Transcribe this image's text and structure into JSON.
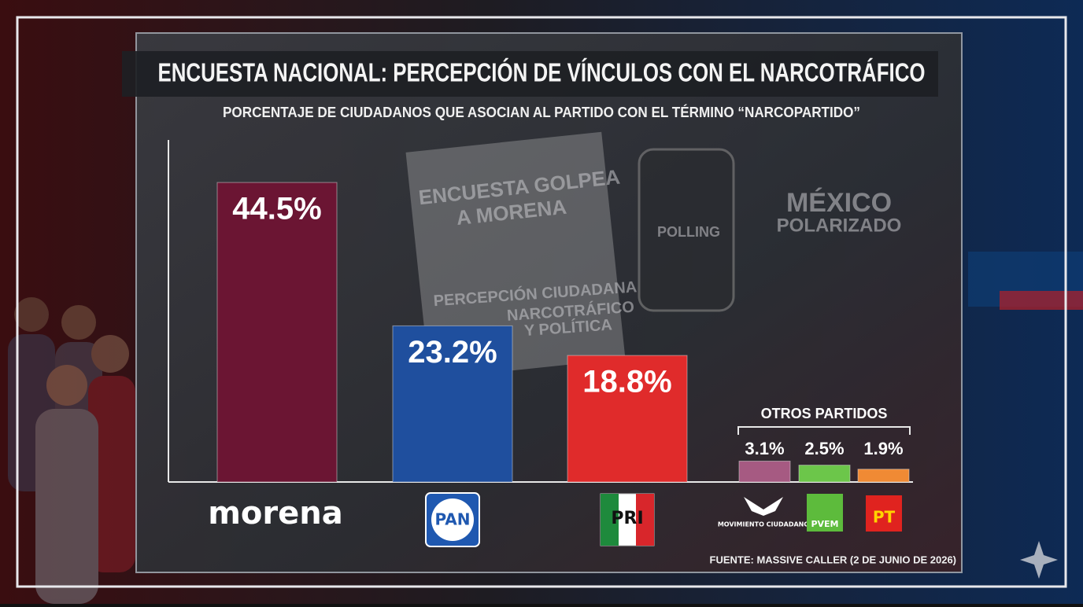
{
  "chart_data": {
    "type": "bar",
    "title": "ENCUESTA NACIONAL: PERCEPCIÓN DE VÍNCULOS CON EL NARCOTRÁFICO",
    "subtitle": "PORCENTAJE DE CIUDADANOS QUE ASOCIAN AL PARTIDO CON EL TÉRMINO “NARCOPARTIDO”",
    "categories": [
      "morena",
      "PAN",
      "PRI",
      "MOVIMIENTO CIUDADANO",
      "PVEM",
      "PT"
    ],
    "values": [
      44.5,
      23.2,
      18.8,
      3.1,
      2.5,
      1.9
    ],
    "value_labels": [
      "44.5%",
      "23.2%",
      "18.8%",
      "3.1%",
      "2.5%",
      "1.9%"
    ],
    "colors": [
      "#6b1533",
      "#1f4f9e",
      "#e02b2b",
      "#a65a82",
      "#6cc64a",
      "#f08a34"
    ],
    "others_label": "OTROS PARTIDOS",
    "ylim": [
      0,
      50
    ],
    "source": "FUENTE: MASSIVE CALLER (2 DE JUNIO DE 2026)",
    "annotations": [
      "ENCUESTA GOLPEA",
      "A MORENA",
      "PERCEPCIÓN CIUDADANA",
      "NARCOTRÁFICO",
      "Y POLÍTICA",
      "POLLING",
      "MÉXICO",
      "POLARIZADO"
    ]
  }
}
